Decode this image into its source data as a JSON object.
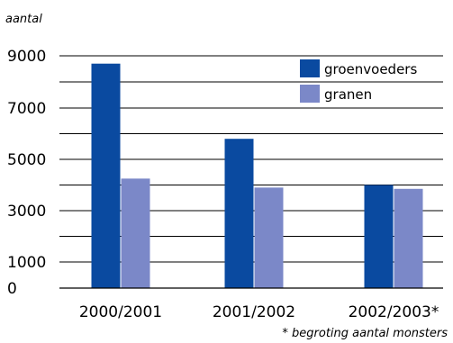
{
  "chart_data": {
    "type": "bar",
    "y_unit_label": "aantal",
    "categories": [
      "2000/2001",
      "2001/2002",
      "2002/2003*"
    ],
    "series": [
      {
        "name": "groenvoeders",
        "color": "#0a4aa0",
        "values": [
          8700,
          5800,
          4000
        ]
      },
      {
        "name": "granen",
        "color": "#7b88c8",
        "values": [
          4250,
          3900,
          3850
        ]
      }
    ],
    "y_ticks": [
      0,
      1000,
      3000,
      5000,
      7000,
      9000
    ],
    "ylim": [
      0,
      9000
    ],
    "grid": true,
    "legend_position": "top-right",
    "footnote": "* begroting aantal monsters"
  }
}
